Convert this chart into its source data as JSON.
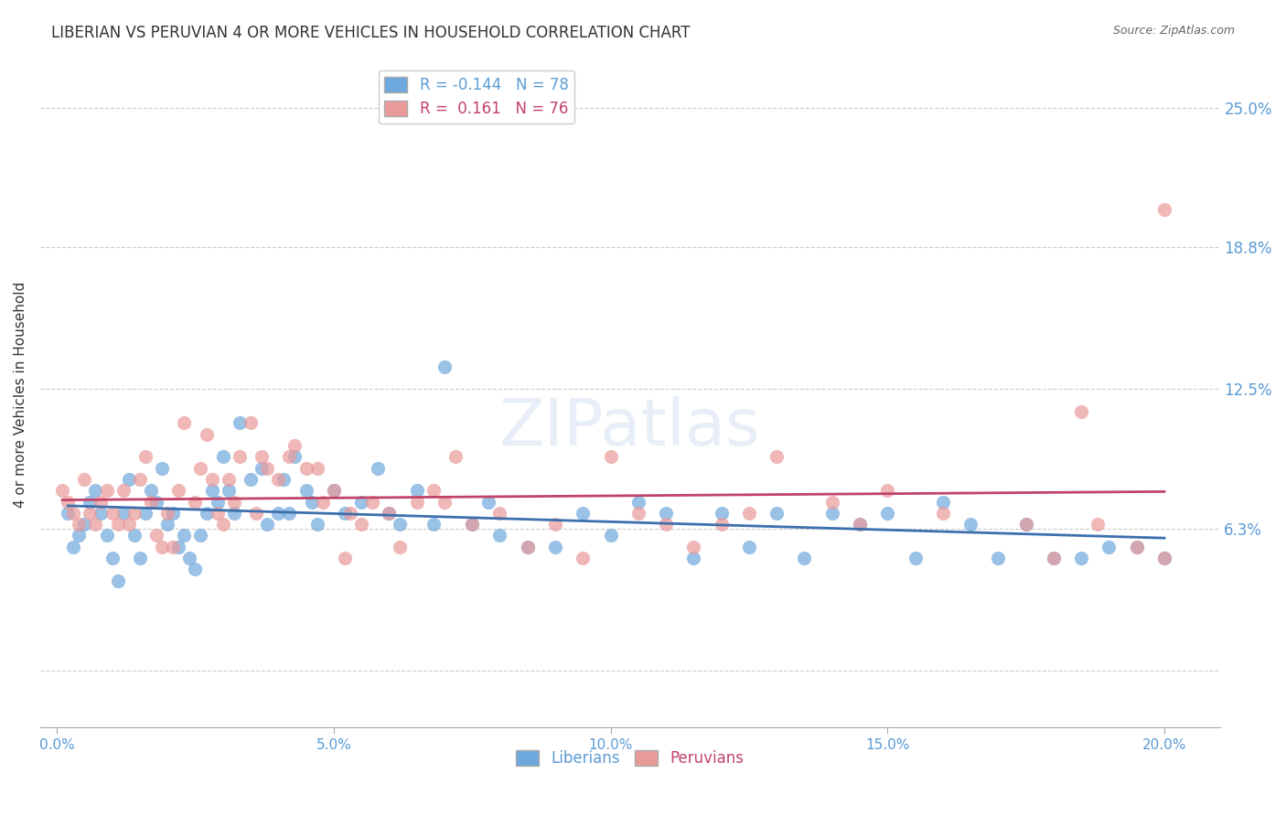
{
  "title": "LIBERIAN VS PERUVIAN 4 OR MORE VEHICLES IN HOUSEHOLD CORRELATION CHART",
  "source": "Source: ZipAtlas.com",
  "ylabel": "4 or more Vehicles in Household",
  "xlabel_liberian": "Liberians",
  "xlabel_peruvian": "Peruvians",
  "watermark": "ZIPatlas",
  "xlim": [
    0.0,
    20.0
  ],
  "ylim": [
    -1.0,
    27.0
  ],
  "yticks": [
    0.0,
    6.3,
    12.5,
    18.8,
    25.0
  ],
  "ytick_labels": [
    "",
    "6.3%",
    "12.5%",
    "18.8%",
    "25.0%"
  ],
  "xticks": [
    0.0,
    5.0,
    10.0,
    15.0,
    20.0
  ],
  "xtick_labels": [
    "0.0%",
    "5.0%",
    "10.0%",
    "15.0%",
    "20.0%"
  ],
  "liberian_R": -0.144,
  "liberian_N": 78,
  "peruvian_R": 0.161,
  "peruvian_N": 76,
  "blue_color": "#6fa8dc",
  "pink_color": "#ea9999",
  "blue_line_color": "#3d6fad",
  "pink_line_color": "#c2436a",
  "tick_label_color": "#5b9bd5",
  "background_color": "#ffffff",
  "liberian_x": [
    0.2,
    0.3,
    0.4,
    0.5,
    0.6,
    0.7,
    0.8,
    0.9,
    1.0,
    1.1,
    1.2,
    1.3,
    1.4,
    1.5,
    1.6,
    1.7,
    1.8,
    1.9,
    2.0,
    2.1,
    2.2,
    2.3,
    2.4,
    2.5,
    2.6,
    2.7,
    2.8,
    2.9,
    3.0,
    3.1,
    3.2,
    3.3,
    3.5,
    3.7,
    3.8,
    4.0,
    4.1,
    4.2,
    4.3,
    4.5,
    4.6,
    4.7,
    5.0,
    5.2,
    5.5,
    5.8,
    6.0,
    6.2,
    6.5,
    6.8,
    7.0,
    7.5,
    7.8,
    8.0,
    8.5,
    9.0,
    9.5,
    10.0,
    10.5,
    11.0,
    11.5,
    12.0,
    12.5,
    13.0,
    13.5,
    14.0,
    14.5,
    15.0,
    15.5,
    16.0,
    16.5,
    17.0,
    17.5,
    18.0,
    18.5,
    19.0,
    19.5,
    20.0
  ],
  "liberian_y": [
    7.0,
    5.5,
    6.0,
    6.5,
    7.5,
    8.0,
    7.0,
    6.0,
    5.0,
    4.0,
    7.0,
    8.5,
    6.0,
    5.0,
    7.0,
    8.0,
    7.5,
    9.0,
    6.5,
    7.0,
    5.5,
    6.0,
    5.0,
    4.5,
    6.0,
    7.0,
    8.0,
    7.5,
    9.5,
    8.0,
    7.0,
    11.0,
    8.5,
    9.0,
    6.5,
    7.0,
    8.5,
    7.0,
    9.5,
    8.0,
    7.5,
    6.5,
    8.0,
    7.0,
    7.5,
    9.0,
    7.0,
    6.5,
    8.0,
    6.5,
    13.5,
    6.5,
    7.5,
    6.0,
    5.5,
    5.5,
    7.0,
    6.0,
    7.5,
    7.0,
    5.0,
    7.0,
    5.5,
    7.0,
    5.0,
    7.0,
    6.5,
    7.0,
    5.0,
    7.5,
    6.5,
    5.0,
    6.5,
    5.0,
    5.0,
    5.5,
    5.5,
    5.0
  ],
  "peruvian_x": [
    0.1,
    0.2,
    0.3,
    0.4,
    0.5,
    0.6,
    0.7,
    0.8,
    0.9,
    1.0,
    1.1,
    1.2,
    1.3,
    1.4,
    1.5,
    1.6,
    1.7,
    1.8,
    1.9,
    2.0,
    2.1,
    2.2,
    2.3,
    2.5,
    2.6,
    2.7,
    2.8,
    2.9,
    3.0,
    3.1,
    3.2,
    3.3,
    3.5,
    3.6,
    3.7,
    3.8,
    4.0,
    4.2,
    4.3,
    4.5,
    4.7,
    4.8,
    5.0,
    5.2,
    5.3,
    5.5,
    5.7,
    6.0,
    6.2,
    6.5,
    6.8,
    7.0,
    7.2,
    7.5,
    8.0,
    8.5,
    9.0,
    9.5,
    10.0,
    10.5,
    11.0,
    11.5,
    12.0,
    12.5,
    13.0,
    14.0,
    14.5,
    15.0,
    16.0,
    17.5,
    18.0,
    18.5,
    18.8,
    19.5,
    20.0,
    20.0
  ],
  "peruvian_y": [
    8.0,
    7.5,
    7.0,
    6.5,
    8.5,
    7.0,
    6.5,
    7.5,
    8.0,
    7.0,
    6.5,
    8.0,
    6.5,
    7.0,
    8.5,
    9.5,
    7.5,
    6.0,
    5.5,
    7.0,
    5.5,
    8.0,
    11.0,
    7.5,
    9.0,
    10.5,
    8.5,
    7.0,
    6.5,
    8.5,
    7.5,
    9.5,
    11.0,
    7.0,
    9.5,
    9.0,
    8.5,
    9.5,
    10.0,
    9.0,
    9.0,
    7.5,
    8.0,
    5.0,
    7.0,
    6.5,
    7.5,
    7.0,
    5.5,
    7.5,
    8.0,
    7.5,
    9.5,
    6.5,
    7.0,
    5.5,
    6.5,
    5.0,
    9.5,
    7.0,
    6.5,
    5.5,
    6.5,
    7.0,
    9.5,
    7.5,
    6.5,
    8.0,
    7.0,
    6.5,
    5.0,
    11.5,
    6.5,
    5.5,
    20.5,
    5.0
  ]
}
